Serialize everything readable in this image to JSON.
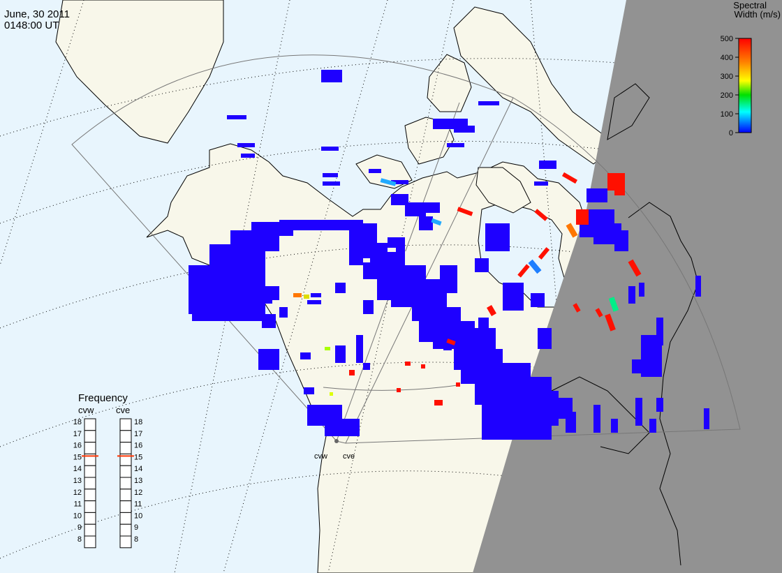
{
  "header": {
    "date": "June, 30 2011",
    "time": "0148:00 UT"
  },
  "colorbar": {
    "title_line1": "Spectral",
    "title_line2": "Width (m/s)",
    "ticks": [
      "500",
      "400",
      "300",
      "200",
      "100",
      "0"
    ],
    "colors": [
      "#ff0000",
      "#ff7f00",
      "#ffff00",
      "#00ff00",
      "#00ffff",
      "#0000ff"
    ]
  },
  "frequency_panel": {
    "title": "Frequency",
    "radar_left": "cvw",
    "radar_right": "cve",
    "levels": [
      "18",
      "17",
      "16",
      "15",
      "14",
      "13",
      "12",
      "11",
      "10",
      "9",
      "8"
    ],
    "selected_left": 15,
    "selected_right": 15,
    "marker_color": "#ff3300"
  },
  "map": {
    "land_color": "#f8f7ea",
    "ocean_color": "#e8f5fd",
    "night_color": "#929292",
    "radar_site_labels": [
      "cvw",
      "cve"
    ]
  }
}
